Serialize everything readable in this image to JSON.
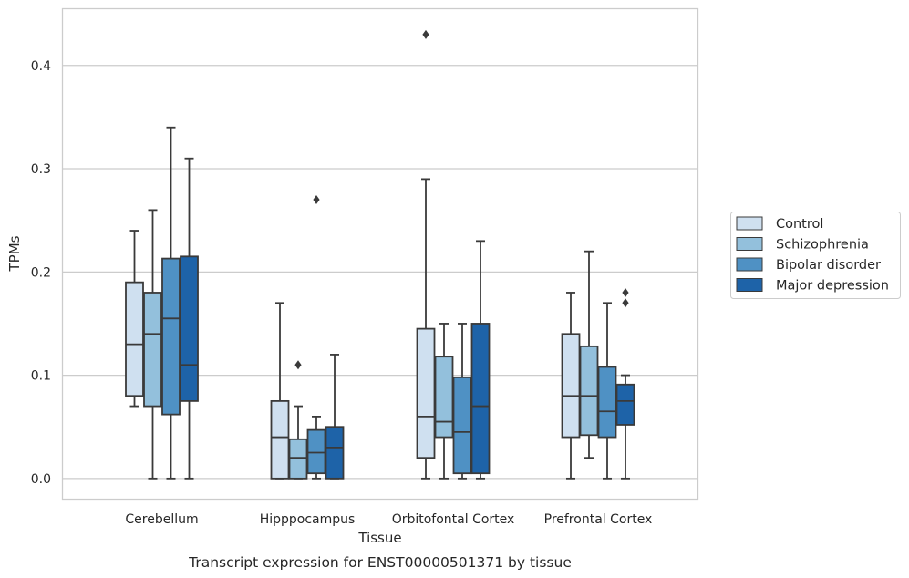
{
  "chart_data": {
    "type": "box",
    "xlabel": "Tissue",
    "ylabel": "TPMs",
    "caption": "Transcript expression for ENST00000501371 by tissue",
    "ylim": [
      -0.02,
      0.455
    ],
    "yticks": [
      0.0,
      0.1,
      0.2,
      0.3,
      0.4
    ],
    "ytick_labels": [
      "0.0",
      "0.1",
      "0.2",
      "0.3",
      "0.4"
    ],
    "grid": "horizontal",
    "legend_position": "outside-right",
    "categories": [
      "Cerebellum",
      "Hipppocampus",
      "Orbitofontal Cortex",
      "Prefrontal Cortex"
    ],
    "series": [
      {
        "name": "Control",
        "color": "#cfe0f0",
        "boxes": [
          {
            "whislo": 0.07,
            "q1": 0.08,
            "med": 0.13,
            "q3": 0.19,
            "whishi": 0.24,
            "fliers": []
          },
          {
            "whislo": 0.0,
            "q1": 0.0,
            "med": 0.04,
            "q3": 0.075,
            "whishi": 0.17,
            "fliers": []
          },
          {
            "whislo": 0.0,
            "q1": 0.02,
            "med": 0.06,
            "q3": 0.145,
            "whishi": 0.29,
            "fliers": [
              0.43
            ]
          },
          {
            "whislo": 0.0,
            "q1": 0.04,
            "med": 0.08,
            "q3": 0.14,
            "whishi": 0.18,
            "fliers": []
          }
        ]
      },
      {
        "name": "Schizophrenia",
        "color": "#93c0dc",
        "boxes": [
          {
            "whislo": 0.0,
            "q1": 0.07,
            "med": 0.14,
            "q3": 0.18,
            "whishi": 0.26,
            "fliers": []
          },
          {
            "whislo": 0.0,
            "q1": 0.0,
            "med": 0.02,
            "q3": 0.038,
            "whishi": 0.07,
            "fliers": [
              0.11
            ]
          },
          {
            "whislo": 0.0,
            "q1": 0.04,
            "med": 0.055,
            "q3": 0.118,
            "whishi": 0.15,
            "fliers": []
          },
          {
            "whislo": 0.02,
            "q1": 0.042,
            "med": 0.08,
            "q3": 0.128,
            "whishi": 0.22,
            "fliers": []
          }
        ]
      },
      {
        "name": "Bipolar disorder",
        "color": "#4f91c4",
        "boxes": [
          {
            "whislo": 0.0,
            "q1": 0.062,
            "med": 0.155,
            "q3": 0.213,
            "whishi": 0.34,
            "fliers": []
          },
          {
            "whislo": 0.0,
            "q1": 0.005,
            "med": 0.025,
            "q3": 0.047,
            "whishi": 0.06,
            "fliers": [
              0.27
            ]
          },
          {
            "whislo": 0.0,
            "q1": 0.005,
            "med": 0.045,
            "q3": 0.098,
            "whishi": 0.15,
            "fliers": []
          },
          {
            "whislo": 0.0,
            "q1": 0.04,
            "med": 0.065,
            "q3": 0.108,
            "whishi": 0.17,
            "fliers": []
          }
        ]
      },
      {
        "name": "Major depression",
        "color": "#1e63a8",
        "boxes": [
          {
            "whislo": 0.0,
            "q1": 0.075,
            "med": 0.11,
            "q3": 0.215,
            "whishi": 0.31,
            "fliers": []
          },
          {
            "whislo": 0.0,
            "q1": 0.0,
            "med": 0.03,
            "q3": 0.05,
            "whishi": 0.12,
            "fliers": []
          },
          {
            "whislo": 0.0,
            "q1": 0.005,
            "med": 0.07,
            "q3": 0.15,
            "whishi": 0.23,
            "fliers": []
          },
          {
            "whislo": 0.0,
            "q1": 0.052,
            "med": 0.075,
            "q3": 0.091,
            "whishi": 0.1,
            "fliers": [
              0.17,
              0.18
            ]
          }
        ]
      }
    ]
  }
}
